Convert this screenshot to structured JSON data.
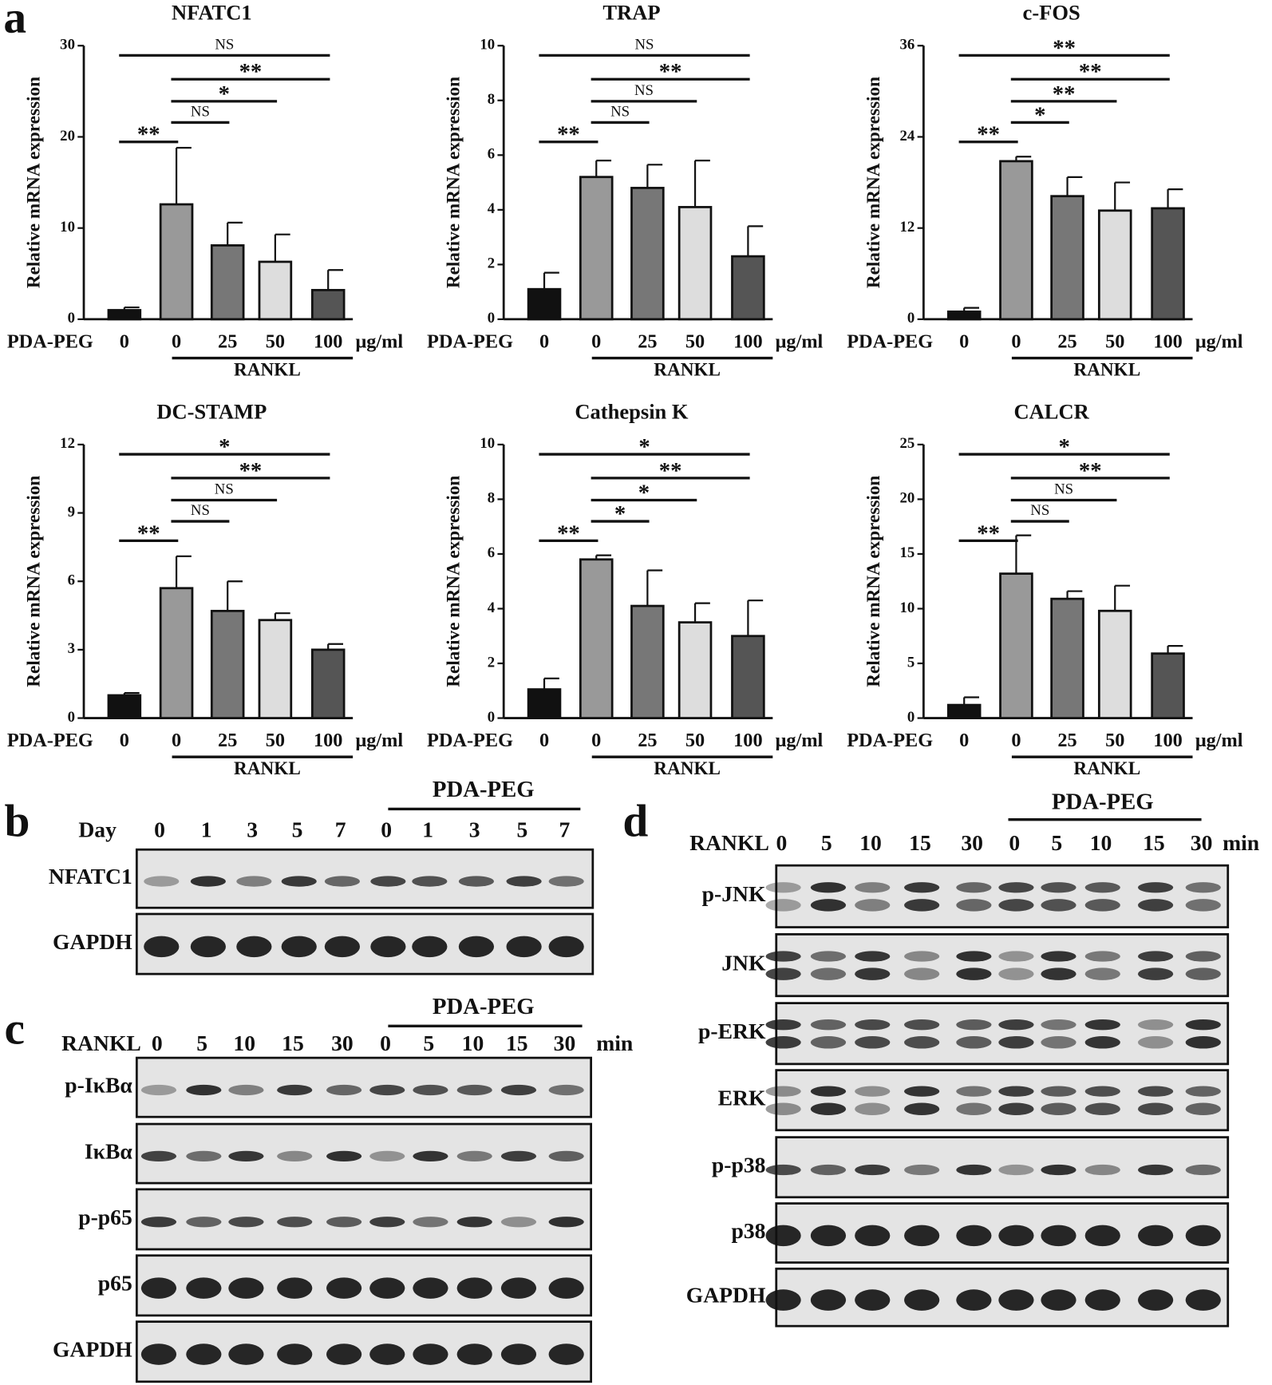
{
  "chart_panel_label": "a",
  "chart_data": [
    {
      "type": "bar",
      "title": "NFATC1",
      "y_label": "Relative mRNA expression",
      "x_label": "PDA-PEG",
      "unit": "μg/ml",
      "group_label": "RANKL",
      "categories": [
        "0",
        "0",
        "25",
        "50",
        "100"
      ],
      "values": [
        1,
        12.6,
        8.1,
        6.3,
        3.2
      ],
      "errors": [
        0.3,
        6.2,
        2.5,
        3,
        2.2
      ],
      "colors": [
        "#111111",
        "#999999",
        "#777777",
        "#dddddd",
        "#555555"
      ],
      "ylim": [
        0,
        30
      ],
      "yticks": [
        0,
        10,
        20,
        30
      ],
      "significance": [
        "**",
        "NS",
        "*",
        "**",
        "NS"
      ]
    },
    {
      "type": "bar",
      "title": "TRAP",
      "y_label": "Relative mRNA expression",
      "x_label": "PDA-PEG",
      "unit": "μg/ml",
      "group_label": "RANKL",
      "categories": [
        "0",
        "0",
        "25",
        "50",
        "100"
      ],
      "values": [
        1.1,
        5.2,
        4.8,
        4.1,
        2.3
      ],
      "errors": [
        0.6,
        0.6,
        0.85,
        1.7,
        1.1
      ],
      "colors": [
        "#111111",
        "#999999",
        "#777777",
        "#dddddd",
        "#555555"
      ],
      "ylim": [
        0,
        10
      ],
      "yticks": [
        0,
        2,
        4,
        6,
        8,
        10
      ],
      "significance": [
        "**",
        "NS",
        "NS",
        "**",
        "NS"
      ]
    },
    {
      "type": "bar",
      "title": "c-FOS",
      "y_label": "Relative mRNA expression",
      "x_label": "PDA-PEG",
      "unit": "μg/ml",
      "group_label": "RANKL",
      "categories": [
        "0",
        "0",
        "25",
        "50",
        "100"
      ],
      "values": [
        1,
        20.8,
        16.2,
        14.3,
        14.6
      ],
      "errors": [
        0.5,
        0.6,
        2.5,
        3.7,
        2.5
      ],
      "colors": [
        "#111111",
        "#999999",
        "#777777",
        "#dddddd",
        "#555555"
      ],
      "ylim": [
        0,
        36
      ],
      "yticks": [
        0,
        12,
        24,
        36
      ],
      "significance": [
        "**",
        "*",
        "**",
        "**",
        "**"
      ]
    },
    {
      "type": "bar",
      "title": "DC-STAMP",
      "y_label": "Relative mRNA expression",
      "x_label": "PDA-PEG",
      "unit": "μg/ml",
      "group_label": "RANKL",
      "categories": [
        "0",
        "0",
        "25",
        "50",
        "100"
      ],
      "values": [
        1,
        5.7,
        4.7,
        4.3,
        3
      ],
      "errors": [
        0.1,
        1.4,
        1.3,
        0.3,
        0.25
      ],
      "colors": [
        "#111111",
        "#999999",
        "#777777",
        "#dddddd",
        "#555555"
      ],
      "ylim": [
        0,
        12
      ],
      "yticks": [
        0,
        3,
        6,
        9,
        12
      ],
      "significance": [
        "**",
        "NS",
        "NS",
        "**",
        "*"
      ]
    },
    {
      "type": "bar",
      "title": "Cathepsin K",
      "y_label": "Relative mRNA expression",
      "x_label": "PDA-PEG",
      "unit": "μg/ml",
      "group_label": "RANKL",
      "categories": [
        "0",
        "0",
        "25",
        "50",
        "100"
      ],
      "values": [
        1.05,
        5.8,
        4.1,
        3.5,
        3
      ],
      "errors": [
        0.4,
        0.15,
        1.3,
        0.7,
        1.3
      ],
      "colors": [
        "#111111",
        "#999999",
        "#777777",
        "#dddddd",
        "#555555"
      ],
      "ylim": [
        0,
        10
      ],
      "yticks": [
        0,
        2,
        4,
        6,
        8,
        10
      ],
      "significance": [
        "**",
        "*",
        "*",
        "**",
        "*"
      ]
    },
    {
      "type": "bar",
      "title": "CALCR",
      "y_label": "Relative mRNA expression",
      "x_label": "PDA-PEG",
      "unit": "μg/ml",
      "group_label": "RANKL",
      "categories": [
        "0",
        "0",
        "25",
        "50",
        "100"
      ],
      "values": [
        1.2,
        13.2,
        10.9,
        9.8,
        5.9
      ],
      "errors": [
        0.7,
        3.5,
        0.7,
        2.3,
        0.7
      ],
      "colors": [
        "#111111",
        "#999999",
        "#777777",
        "#dddddd",
        "#555555"
      ],
      "ylim": [
        0,
        25
      ],
      "yticks": [
        0,
        5,
        10,
        15,
        20,
        25
      ],
      "significance": [
        "**",
        "NS",
        "NS",
        "**",
        "*"
      ]
    }
  ],
  "blots": [
    {
      "label": "b",
      "lane_header": "Day",
      "lanes": [
        "0",
        "1",
        "3",
        "5",
        "7",
        "0",
        "1",
        "3",
        "5",
        "7"
      ],
      "group_label": "PDA-PEG",
      "rows": [
        "NFATC1",
        "GAPDH"
      ]
    },
    {
      "label": "c",
      "lane_header": "RANKL",
      "lanes": [
        "0",
        "5",
        "10",
        "15",
        "30",
        "0",
        "5",
        "10",
        "15",
        "30"
      ],
      "unit": "min",
      "group_label": "PDA-PEG",
      "rows": [
        "p-IκBα",
        "IκBα",
        "p-p65",
        "p65",
        "GAPDH"
      ]
    },
    {
      "label": "d",
      "lane_header": "RANKL",
      "lanes": [
        "0",
        "5",
        "10",
        "15",
        "30",
        "0",
        "5",
        "10",
        "15",
        "30"
      ],
      "unit": "min",
      "group_label": "PDA-PEG",
      "rows": [
        "p-JNK",
        "JNK",
        "p-ERK",
        "ERK",
        "p-p38",
        "p38",
        "GAPDH"
      ]
    }
  ]
}
